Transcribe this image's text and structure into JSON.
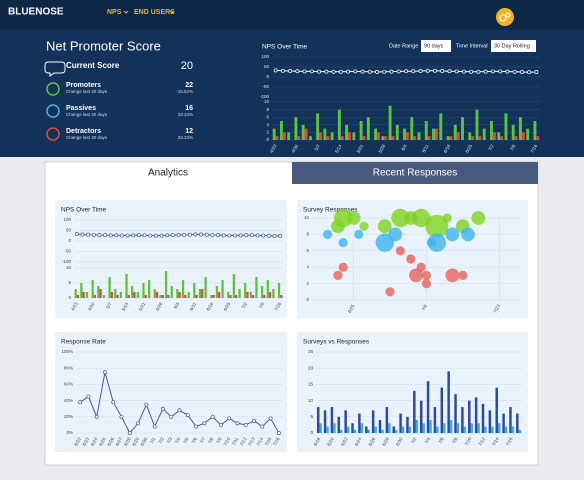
{
  "nav": {
    "brand": "BLUENOSE",
    "menu": [
      "NPS",
      "END USERS"
    ]
  },
  "summary": {
    "title": "Net Promoter Score",
    "current": {
      "label": "Current Score",
      "value": 20
    },
    "groups": [
      {
        "label": "Promoters",
        "sub": "Change last 30 days",
        "value": 22,
        "change": "-16.52%"
      },
      {
        "label": "Passives",
        "sub": "Change last 30 days",
        "value": 16,
        "change": "33.33%"
      },
      {
        "label": "Detractors",
        "sub": "Change last 30 days",
        "value": 12,
        "change": "33.33%"
      }
    ]
  },
  "controls": {
    "date_range_label": "Date Range",
    "date_range": "90 days",
    "interval_label": "Time Interval",
    "interval": "30 Day Rolling"
  },
  "tabs": [
    "Analytics",
    "Recent Responses"
  ],
  "chart_data": [
    {
      "type": "combo",
      "title": "NPS Over Time",
      "categories": [
        "4/23",
        null,
        null,
        "4/30",
        null,
        null,
        "5/7",
        null,
        null,
        "5/14",
        null,
        null,
        "5/21",
        null,
        null,
        "5/28",
        null,
        null,
        "6/4",
        null,
        null,
        "6/11",
        null,
        null,
        "6/18",
        null,
        null,
        "6/25",
        null,
        null,
        "7/2",
        null,
        null,
        "7/9",
        null,
        null,
        "7/16"
      ],
      "ylim": [
        -100,
        100
      ],
      "yticks": [
        -100,
        -50,
        0,
        50,
        100
      ],
      "y2lim": [
        0,
        10
      ],
      "y2ticks": [
        0,
        2,
        4,
        6,
        8,
        10
      ],
      "series": [
        {
          "color": "#ffffff",
          "values": [
            33,
            31,
            30,
            29,
            28,
            28,
            27,
            27,
            26,
            26,
            27,
            28,
            27,
            26,
            25,
            26,
            27,
            28,
            29,
            29,
            30,
            31,
            31,
            30,
            29,
            28,
            27,
            26,
            26,
            27,
            28,
            28,
            27,
            26,
            25,
            24,
            25
          ]
        },
        {
          "color": "#5cc43c",
          "axis": "y2",
          "values": [
            3,
            5,
            2,
            6,
            4,
            1,
            7,
            3,
            2,
            8,
            4,
            2,
            5,
            6,
            3,
            1,
            9,
            4,
            3,
            6,
            2,
            5,
            3,
            7,
            1,
            4,
            6,
            2,
            8,
            3,
            5,
            2,
            7,
            4,
            6,
            3,
            5
          ]
        },
        {
          "color": "#e2483d",
          "axis": "y2",
          "values": [
            1,
            2,
            0,
            1,
            3,
            0,
            2,
            1,
            0,
            1,
            2,
            0,
            1,
            0,
            2,
            1,
            1,
            0,
            2,
            1,
            0,
            1,
            3,
            0,
            1,
            2,
            0,
            1,
            1,
            0,
            2,
            1,
            0,
            1,
            2,
            0,
            1
          ]
        }
      ]
    },
    {
      "type": "combo",
      "title": "NPS Over Time",
      "categories": [
        "4/23",
        null,
        null,
        "4/30",
        null,
        null,
        "5/7",
        null,
        null,
        "5/14",
        null,
        null,
        "5/21",
        null,
        null,
        "5/28",
        null,
        null,
        "6/4",
        null,
        null,
        "6/11",
        null,
        null,
        "6/18",
        null,
        null,
        "6/25",
        null,
        null,
        "7/2",
        null,
        null,
        "7/9",
        null,
        null,
        "7/16"
      ],
      "ylim": [
        -100,
        100
      ],
      "yticks": [
        -100,
        -50,
        0,
        50,
        100
      ],
      "y2lim": [
        0,
        10
      ],
      "y2ticks": [
        0,
        5,
        10
      ],
      "series": [
        {
          "color": "#3d5a9e",
          "values": [
            33,
            31,
            30,
            29,
            28,
            28,
            27,
            27,
            26,
            26,
            27,
            28,
            27,
            26,
            25,
            26,
            27,
            28,
            29,
            29,
            30,
            31,
            31,
            30,
            29,
            28,
            27,
            26,
            26,
            27,
            28,
            28,
            27,
            26,
            25,
            24,
            25
          ]
        },
        {
          "color": "#5cc43c",
          "axis": "y2",
          "values": [
            3,
            5,
            2,
            6,
            4,
            1,
            7,
            3,
            2,
            8,
            4,
            2,
            5,
            6,
            3,
            1,
            9,
            4,
            3,
            6,
            2,
            5,
            3,
            7,
            1,
            4,
            6,
            2,
            8,
            3,
            5,
            2,
            7,
            4,
            6,
            3,
            5
          ]
        },
        {
          "color": "#e2483d",
          "axis": "y2",
          "values": [
            1,
            2,
            0,
            1,
            3,
            0,
            2,
            1,
            0,
            1,
            2,
            0,
            1,
            0,
            2,
            1,
            1,
            0,
            2,
            1,
            0,
            1,
            3,
            0,
            1,
            2,
            0,
            1,
            1,
            0,
            2,
            1,
            0,
            1,
            2,
            0,
            1
          ]
        }
      ]
    },
    {
      "type": "bubble",
      "title": "Survey Responses",
      "xlim": [
        0,
        40
      ],
      "xticks": [
        {
          "value": 8,
          "label": "6/25"
        },
        {
          "value": 22,
          "label": "7/9"
        },
        {
          "value": 36,
          "label": "7/23"
        }
      ],
      "ylim": [
        0,
        10
      ],
      "yticks": [
        0,
        2,
        4,
        6,
        8,
        10
      ],
      "series": [
        {
          "color": "#7ed321",
          "x": [
            5,
            6,
            8,
            10,
            14,
            17,
            19,
            21,
            24,
            26,
            29,
            32
          ],
          "values": [
            9,
            10,
            10,
            9,
            9,
            10,
            10,
            10,
            9,
            10,
            9,
            10
          ],
          "sizes": [
            3,
            4,
            3,
            2,
            3,
            4,
            3,
            4,
            5,
            2,
            3,
            3
          ]
        },
        {
          "color": "#3fb4f0",
          "x": [
            3,
            6,
            9,
            14,
            16,
            23,
            24,
            27,
            30
          ],
          "values": [
            8,
            7,
            8,
            7,
            8,
            7,
            7,
            8,
            8
          ],
          "sizes": [
            2,
            2,
            2,
            4,
            3,
            2,
            4,
            3,
            3
          ]
        },
        {
          "color": "#e8605a",
          "x": [
            5,
            6,
            17,
            19,
            20,
            21,
            22,
            27,
            29,
            22,
            15
          ],
          "values": [
            3,
            4,
            6,
            5,
            3,
            4,
            3,
            3,
            3,
            2,
            1
          ],
          "sizes": [
            2,
            2,
            2,
            2,
            3,
            2,
            2,
            3,
            2,
            2,
            2
          ]
        }
      ]
    },
    {
      "type": "line",
      "title": "Response Rate",
      "categories": [
        "6/22",
        "6/23",
        "6/24",
        "6/25",
        "6/26",
        "6/27",
        "6/28",
        "6/29",
        "6/30",
        "7/1",
        "7/2",
        "7/3",
        "7/4",
        "7/5",
        "7/6",
        "7/7",
        "7/8",
        "7/9",
        "7/10",
        "7/11",
        "7/12",
        "7/13",
        "7/14",
        "7/15",
        "7/16"
      ],
      "ylim": [
        0,
        100
      ],
      "yticks": [
        {
          "value": 0,
          "label": "0%"
        },
        {
          "value": 20,
          "label": "20%"
        },
        {
          "value": 40,
          "label": "40%"
        },
        {
          "value": 60,
          "label": "60%"
        },
        {
          "value": 80,
          "label": "80%"
        },
        {
          "value": 100,
          "label": "100%"
        }
      ],
      "color": "#3d5a9e",
      "values": [
        38,
        45,
        20,
        75,
        38,
        20,
        0,
        12,
        35,
        8,
        30,
        20,
        28,
        22,
        8,
        12,
        20,
        10,
        18,
        12,
        10,
        15,
        8,
        18,
        0
      ]
    },
    {
      "type": "bar",
      "title": "Surveys vs Responses",
      "categories": [
        "6/18",
        null,
        "6/20",
        null,
        "6/22",
        null,
        "6/24",
        null,
        "6/26",
        null,
        "6/28",
        null,
        "6/30",
        null,
        "7/2",
        null,
        "7/4",
        null,
        "7/6",
        null,
        "7/8",
        null,
        "7/10",
        null,
        "7/12",
        null,
        "7/14",
        null,
        "7/16",
        null
      ],
      "ylim": [
        0,
        25
      ],
      "yticks": [
        0,
        5,
        10,
        15,
        20,
        25
      ],
      "series": [
        {
          "color": "#2e4a9a",
          "values": [
            8,
            7,
            8,
            5,
            7,
            3,
            6,
            2,
            7,
            4,
            8,
            2,
            6,
            5,
            13,
            10,
            16,
            8,
            14,
            19,
            12,
            8,
            10,
            11,
            9,
            7,
            14,
            6,
            8,
            6
          ]
        },
        {
          "color": "#3fa9e8",
          "values": [
            3,
            2,
            3,
            1,
            2,
            1,
            3,
            1,
            2,
            1,
            3,
            1,
            2,
            2,
            4,
            3,
            4,
            2,
            3,
            4,
            3,
            2,
            3,
            3,
            2,
            2,
            3,
            2,
            2,
            1
          ]
        }
      ]
    }
  ]
}
